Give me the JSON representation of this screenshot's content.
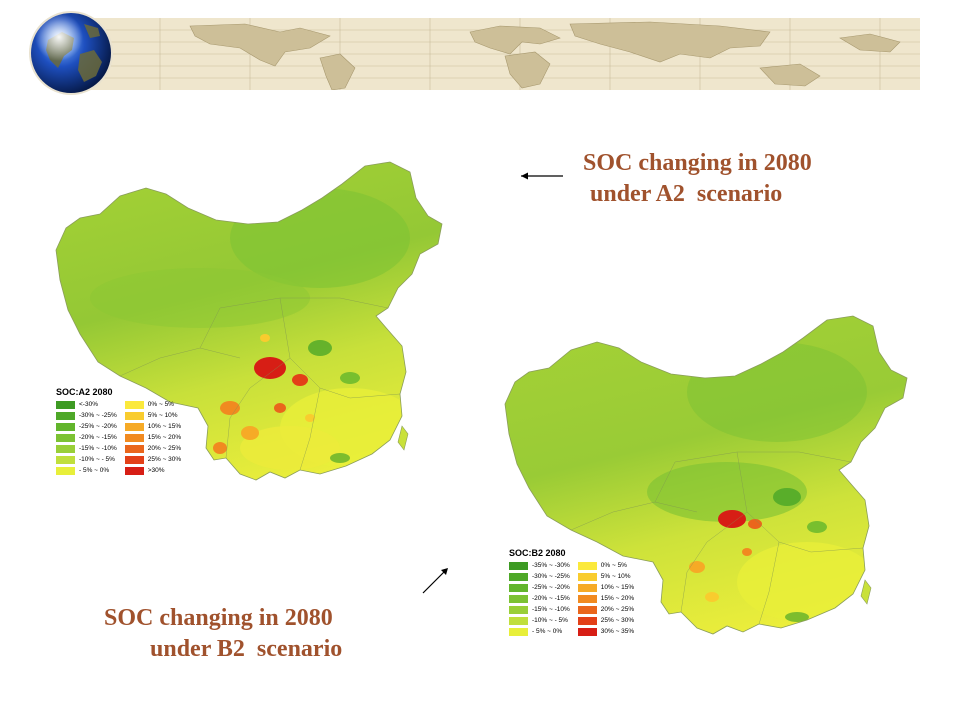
{
  "captions": {
    "a2": {
      "line1": "SOC changing in 2080",
      "line2": "under A2  scenario"
    },
    "b2": {
      "line1": "SOC changing in 2080",
      "line2": "under B2  scenario"
    }
  },
  "legend_a2": {
    "title": "SOC:A2 2080",
    "left": [
      {
        "label": "<-30%",
        "color": "#3d9a23"
      },
      {
        "label": "-30% ~ -25%",
        "color": "#4ea828"
      },
      {
        "label": "-25% ~ -20%",
        "color": "#62b52c"
      },
      {
        "label": "-20% ~ -15%",
        "color": "#7cc233"
      },
      {
        "label": "-15% ~ -10%",
        "color": "#99cf38"
      },
      {
        "label": "-10% ~ - 5%",
        "color": "#c0df3c"
      },
      {
        "label": "- 5% ~   0%",
        "color": "#e8ef3a"
      }
    ],
    "right": [
      {
        "label": "0% ~   5%",
        "color": "#fbe93c"
      },
      {
        "label": "5% ~ 10%",
        "color": "#f9cc2e"
      },
      {
        "label": "10% ~ 15%",
        "color": "#f6aa26"
      },
      {
        "label": "15% ~ 20%",
        "color": "#f18a20"
      },
      {
        "label": "20% ~ 25%",
        "color": "#ea661c"
      },
      {
        "label": "25% ~ 30%",
        "color": "#e34018"
      },
      {
        "label": ">30%",
        "color": "#d71e15"
      }
    ]
  },
  "legend_b2": {
    "title": "SOC:B2 2080",
    "left": [
      {
        "label": "-35% ~ -30%",
        "color": "#3d9a23"
      },
      {
        "label": "-30% ~ -25%",
        "color": "#4ea828"
      },
      {
        "label": "-25% ~ -20%",
        "color": "#62b52c"
      },
      {
        "label": "-20% ~ -15%",
        "color": "#7cc233"
      },
      {
        "label": "-15% ~ -10%",
        "color": "#99cf38"
      },
      {
        "label": "-10% ~ - 5%",
        "color": "#c0df3c"
      },
      {
        "label": "- 5% ~   0%",
        "color": "#e8ef3a"
      }
    ],
    "right": [
      {
        "label": "0% ~   5%",
        "color": "#fbe93c"
      },
      {
        "label": "5% ~ 10%",
        "color": "#f9cc2e"
      },
      {
        "label": "10% ~ 15%",
        "color": "#f6aa26"
      },
      {
        "label": "15% ~ 20%",
        "color": "#f18a20"
      },
      {
        "label": "20% ~ 25%",
        "color": "#ea661c"
      },
      {
        "label": "25% ~ 30%",
        "color": "#e34018"
      },
      {
        "label": "30% ~ 35%",
        "color": "#d71e15"
      }
    ]
  },
  "colors": {
    "caption": "#a0522d",
    "map_base": "#a5d133",
    "map_north": "#7cc233",
    "map_south": "#e3ea3a",
    "hotspot": "#e34018"
  },
  "icons": {
    "banner_globe": "globe-icon",
    "banner_map": "world-map-banner"
  }
}
